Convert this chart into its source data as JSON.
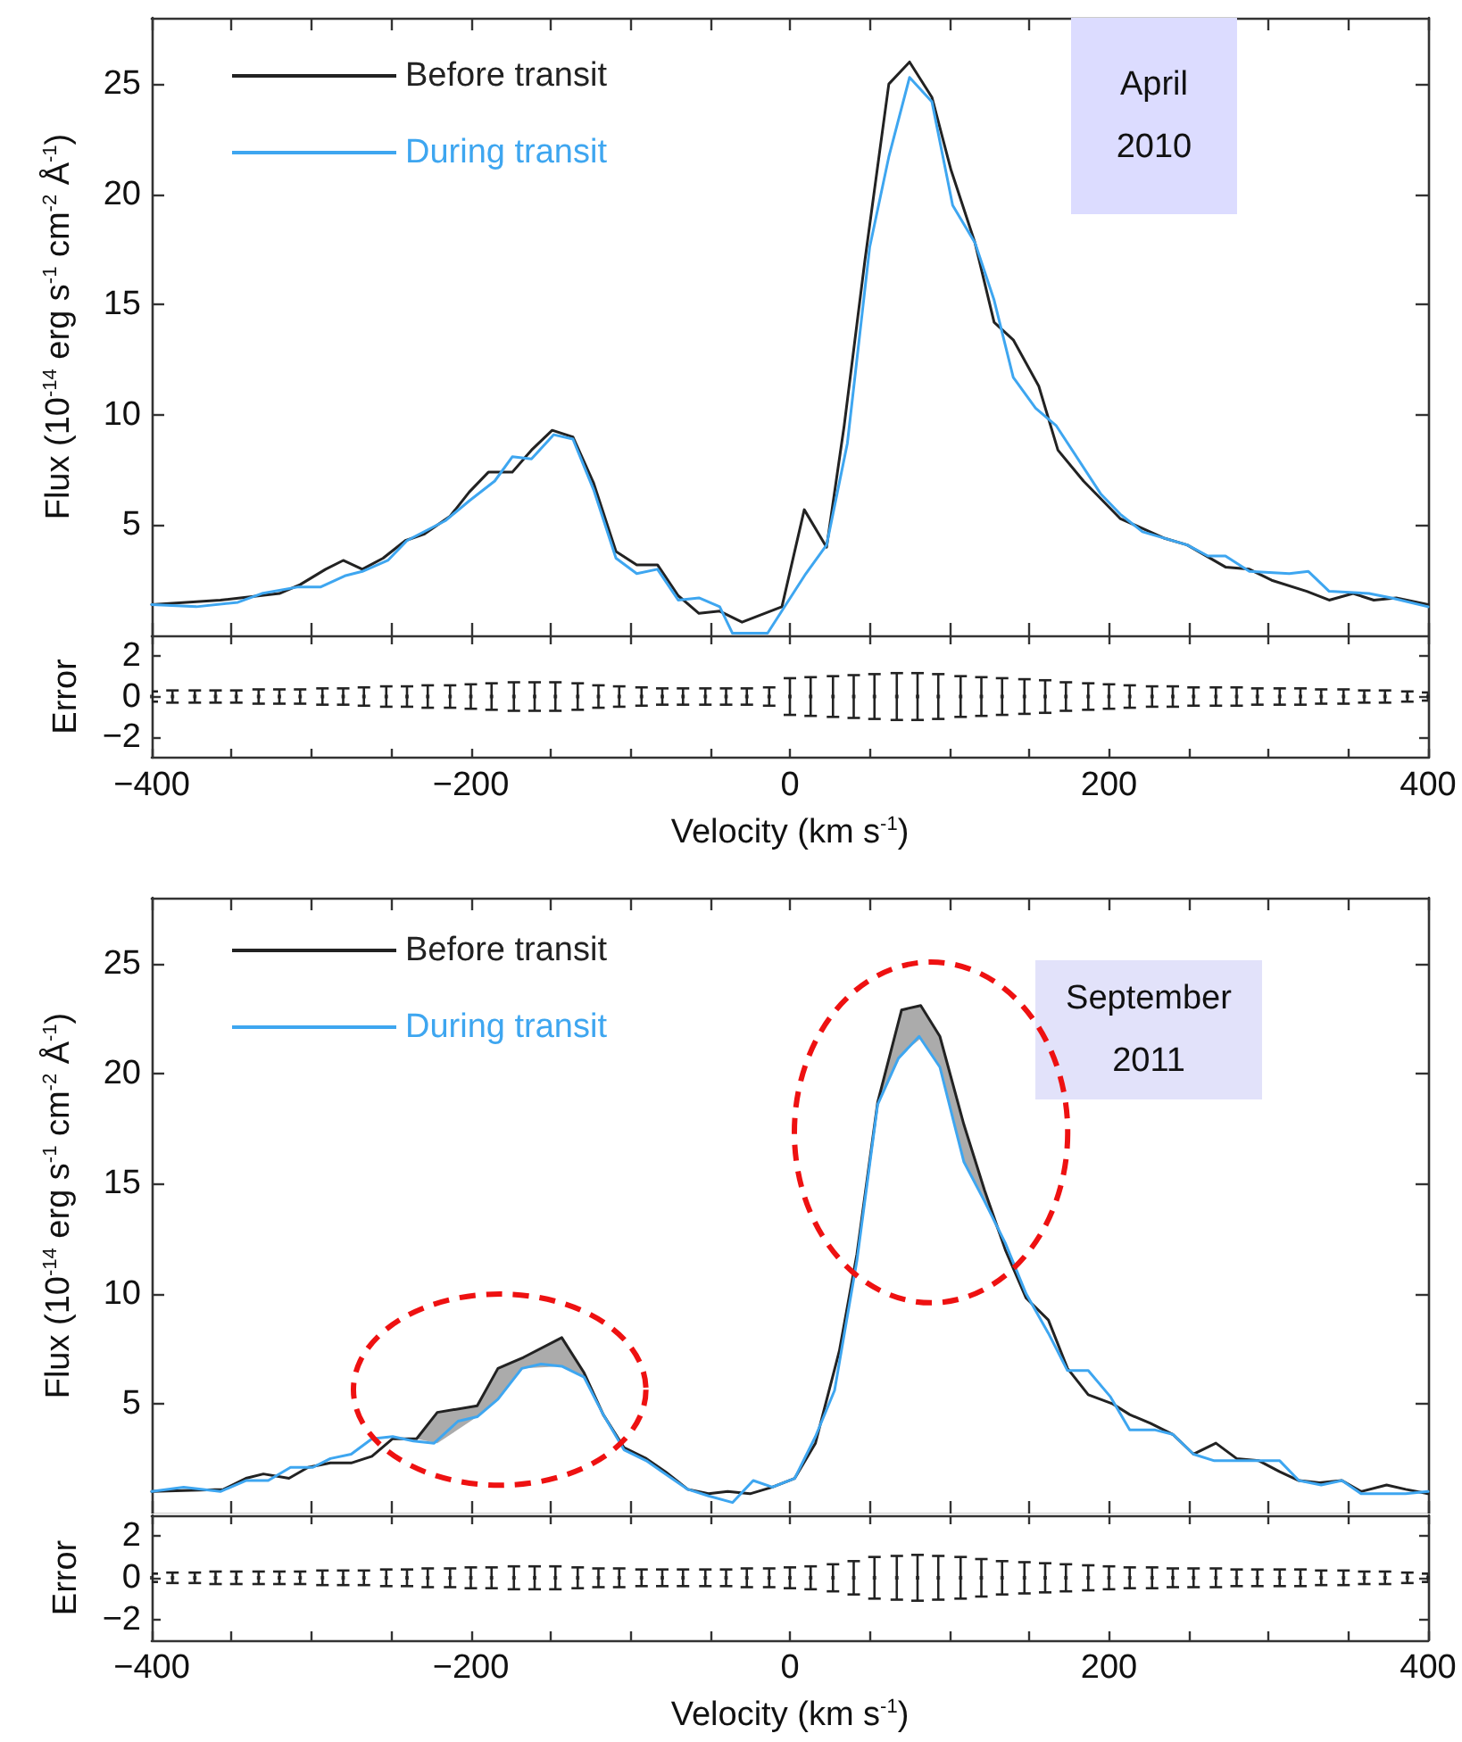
{
  "chart_data": [
    {
      "type": "line",
      "ylabel": "Flux (10$^{-14}$ erg s$^{-1}$ cm$^{-2}$ Å$^{-1}$)",
      "annotations": [
        "April 2010"
      ],
      "legend": "top left",
      "marker": "none",
      "grid": false,
      "tick_labels": "y",
      "xlim": [
        -400,
        400
      ],
      "xticks": [
        -400,
        -350,
        -300,
        -250,
        -200,
        -150,
        -100,
        -50,
        0,
        50,
        100,
        150,
        200,
        250,
        300,
        350,
        400
      ],
      "ylim": [
        0,
        28
      ],
      "yticks": [
        5,
        10,
        15,
        20,
        25
      ],
      "series": [
        {
          "name": "Before transit",
          "color": "#222222",
          "x": [
            -400,
            -357,
            -320,
            -307,
            -291,
            -280,
            -268,
            -255,
            -241,
            -229,
            -213,
            -201,
            -189,
            -174,
            -162,
            -149,
            -136,
            -123,
            -109,
            -96,
            -83,
            -70,
            -57,
            -44,
            -30,
            -5,
            9,
            23,
            34,
            47,
            62,
            75,
            89,
            101,
            116,
            128,
            140,
            156,
            168,
            184,
            207,
            235,
            249,
            273,
            288,
            302,
            324,
            338,
            353,
            366,
            380,
            400
          ],
          "values": [
            1.4,
            1.6,
            1.9,
            2.3,
            3.0,
            3.4,
            3.0,
            3.5,
            4.3,
            4.6,
            5.4,
            6.5,
            7.4,
            7.4,
            8.4,
            9.3,
            9.0,
            6.9,
            3.8,
            3.2,
            3.2,
            1.8,
            1.0,
            1.1,
            0.6,
            1.3,
            5.7,
            4.0,
            9.5,
            17.0,
            25.0,
            26.0,
            24.4,
            21.1,
            17.8,
            14.2,
            13.4,
            11.3,
            8.4,
            7.0,
            5.3,
            4.4,
            4.1,
            3.1,
            3.0,
            2.5,
            2.0,
            1.6,
            1.9,
            1.6,
            1.7,
            1.4
          ]
        },
        {
          "name": "During transit",
          "color": "#3ea6f0",
          "x": [
            -400,
            -372,
            -346,
            -331,
            -308,
            -294,
            -279,
            -268,
            -252,
            -240,
            -216,
            -201,
            -185,
            -174,
            -162,
            -148,
            -136,
            -123,
            -109,
            -96,
            -83,
            -70,
            -57,
            -44,
            -36,
            -14,
            10,
            23,
            36,
            50,
            62,
            75,
            89,
            102,
            116,
            128,
            140,
            154,
            167,
            195,
            207,
            221,
            249,
            262,
            273,
            288,
            313,
            325,
            338,
            363,
            377,
            400
          ],
          "values": [
            1.4,
            1.3,
            1.5,
            1.9,
            2.2,
            2.2,
            2.7,
            2.9,
            3.4,
            4.3,
            5.2,
            6.1,
            7.0,
            8.1,
            8.0,
            9.1,
            8.9,
            6.6,
            3.5,
            2.8,
            3.0,
            1.6,
            1.7,
            1.3,
            0.1,
            0.1,
            2.8,
            4.1,
            8.7,
            17.6,
            21.7,
            25.3,
            24.2,
            19.5,
            17.8,
            15.2,
            11.7,
            10.3,
            9.5,
            6.4,
            5.5,
            4.7,
            4.1,
            3.6,
            3.6,
            2.9,
            2.8,
            2.9,
            2.0,
            1.9,
            1.7,
            1.3
          ]
        }
      ]
    },
    {
      "type": "scatter",
      "xlabel": "Velocity (km s$^{-1}$)",
      "ylabel": "Error",
      "marker": "square",
      "grid": false,
      "color": "#222222",
      "xlim": [
        -400,
        400
      ],
      "xticks": [
        {
          "value": -400,
          "label": "−400"
        },
        {
          "value": -350,
          "label": null
        },
        {
          "value": -300,
          "label": null
        },
        {
          "value": -250,
          "label": null
        },
        {
          "value": -200,
          "label": "−200"
        },
        {
          "value": -150,
          "label": null
        },
        {
          "value": -100,
          "label": null
        },
        {
          "value": -50,
          "label": null
        },
        0,
        {
          "value": 50,
          "label": null
        },
        {
          "value": 100,
          "label": null
        },
        {
          "value": 150,
          "label": null
        },
        200,
        {
          "value": 250,
          "label": null
        },
        {
          "value": 300,
          "label": null
        },
        {
          "value": 350,
          "label": null
        },
        400
      ],
      "ylim": [
        -3,
        3
      ],
      "yticks": [
        {
          "value": -2,
          "label": "−2"
        },
        0,
        2
      ],
      "x": [
        -400,
        -387,
        -373,
        -360,
        -347,
        -333,
        -320,
        -307,
        -293,
        -280,
        -267,
        -253,
        -240,
        -227,
        -213,
        -200,
        -187,
        -173,
        -160,
        -147,
        -133,
        -120,
        -107,
        -93,
        -80,
        -67,
        -53,
        -40,
        -27,
        -13,
        0,
        13,
        27,
        40,
        53,
        67,
        80,
        93,
        107,
        120,
        133,
        147,
        160,
        173,
        187,
        200,
        213,
        227,
        240,
        253,
        267,
        280,
        293,
        307,
        320,
        333,
        347,
        360,
        373,
        387,
        400
      ],
      "values": [
        0,
        0,
        0,
        0,
        0,
        0,
        0,
        0,
        0,
        0,
        0,
        0,
        0,
        0,
        0,
        0,
        0,
        0,
        0,
        0,
        0,
        0,
        0,
        0,
        0,
        0,
        0,
        0,
        0,
        0,
        0,
        0,
        0,
        0,
        0,
        0,
        0,
        0,
        0,
        0,
        0,
        0,
        0,
        0,
        0,
        0,
        0,
        0,
        0,
        0,
        0,
        0,
        0,
        0,
        0,
        0,
        0,
        0,
        0,
        0,
        0
      ],
      "errors": [
        0.25,
        0.3,
        0.3,
        0.3,
        0.3,
        0.35,
        0.35,
        0.35,
        0.4,
        0.4,
        0.45,
        0.5,
        0.5,
        0.55,
        0.55,
        0.6,
        0.65,
        0.7,
        0.7,
        0.7,
        0.65,
        0.55,
        0.5,
        0.45,
        0.4,
        0.4,
        0.4,
        0.4,
        0.4,
        0.45,
        0.9,
        0.95,
        1.0,
        1.05,
        1.1,
        1.15,
        1.15,
        1.1,
        1.0,
        0.95,
        0.9,
        0.85,
        0.8,
        0.7,
        0.65,
        0.6,
        0.55,
        0.5,
        0.5,
        0.45,
        0.45,
        0.45,
        0.4,
        0.4,
        0.4,
        0.35,
        0.35,
        0.3,
        0.3,
        0.25,
        0.2
      ]
    },
    {
      "type": "line",
      "ylabel": "Flux (10$^{-14}$ erg s$^{-1}$ cm$^{-2}$ Å$^{-1}$)",
      "annotations": [
        "September 2011"
      ],
      "legend": "top left",
      "marker": "none",
      "grid": false,
      "tick_labels": "y",
      "xlim": [
        -400,
        400
      ],
      "xticks": [
        -400,
        -350,
        -300,
        -250,
        -200,
        -150,
        -100,
        -50,
        0,
        50,
        100,
        150,
        200,
        250,
        300,
        350,
        400
      ],
      "ylim": [
        0,
        28
      ],
      "yticks": [
        5,
        10,
        15,
        20,
        25
      ],
      "series": [
        {
          "name": "Before transit",
          "color": "#222222",
          "x": [
            -400,
            -355,
            -341,
            -330,
            -314,
            -302,
            -288,
            -275,
            -262,
            -249,
            -234,
            -221,
            -196,
            -183,
            -167,
            -143,
            -129,
            -117,
            -104,
            -90,
            -78,
            -64,
            -51,
            -39,
            -25,
            -11,
            3,
            16,
            31,
            42,
            55,
            70,
            82,
            94,
            109,
            122,
            135,
            148,
            162,
            174,
            187,
            202,
            213,
            226,
            240,
            253,
            267,
            280,
            294,
            307,
            319,
            332,
            346,
            358,
            374,
            386,
            400
          ],
          "values": [
            1.0,
            1.1,
            1.6,
            1.8,
            1.6,
            2.1,
            2.3,
            2.3,
            2.6,
            3.4,
            3.4,
            4.6,
            4.9,
            6.6,
            7.1,
            8.0,
            6.4,
            4.5,
            3.0,
            2.5,
            1.9,
            1.1,
            0.9,
            1.0,
            0.9,
            1.2,
            1.6,
            3.2,
            7.4,
            11.8,
            18.7,
            22.9,
            23.1,
            21.7,
            17.7,
            14.7,
            12.0,
            9.8,
            8.8,
            6.6,
            5.4,
            5.0,
            4.5,
            4.1,
            3.6,
            2.7,
            3.2,
            2.5,
            2.4,
            1.9,
            1.5,
            1.4,
            1.5,
            1.0,
            1.3,
            1.1,
            0.9
          ],
          "lower": [
            null,
            null,
            null,
            null,
            null,
            null,
            null,
            null,
            null,
            null,
            3.4,
            3.2,
            4.4,
            5.2,
            6.6,
            6.7,
            6.2,
            null,
            null,
            null,
            null,
            null,
            null,
            null,
            null,
            null,
            null,
            null,
            null,
            11.5,
            18.6,
            20.9,
            21.6,
            20.3,
            16.0,
            14.2,
            12.0,
            null,
            null,
            null,
            null,
            null,
            null,
            null,
            null,
            null,
            null,
            null,
            null,
            null,
            null,
            null,
            null,
            null,
            null,
            null,
            null
          ],
          "upper": [
            null,
            null,
            null,
            null,
            null,
            null,
            null,
            null,
            null,
            null,
            3.4,
            4.6,
            4.9,
            6.6,
            7.1,
            8.0,
            6.4,
            null,
            null,
            null,
            null,
            null,
            null,
            null,
            null,
            null,
            null,
            null,
            null,
            11.8,
            18.7,
            22.9,
            23.1,
            21.7,
            17.7,
            14.7,
            12.0,
            null,
            null,
            null,
            null,
            null,
            null,
            null,
            null,
            null,
            null,
            null,
            null,
            null,
            null,
            null,
            null,
            null,
            null,
            null,
            null
          ]
        },
        {
          "name": "During transit",
          "color": "#3ea6f0",
          "x": [
            -400,
            -380,
            -357,
            -341,
            -327,
            -313,
            -299,
            -288,
            -275,
            -262,
            -249,
            -236,
            -223,
            -208,
            -196,
            -183,
            -168,
            -156,
            -143,
            -129,
            -117,
            -104,
            -90,
            -78,
            -64,
            -51,
            -36,
            -23,
            -11,
            3,
            16,
            28,
            42,
            55,
            68,
            81,
            94,
            109,
            122,
            135,
            148,
            162,
            174,
            187,
            201,
            213,
            229,
            240,
            253,
            266,
            280,
            294,
            307,
            319,
            333,
            346,
            358,
            374,
            386,
            400
          ],
          "values": [
            1.0,
            1.2,
            1.0,
            1.5,
            1.5,
            2.1,
            2.1,
            2.5,
            2.7,
            3.4,
            3.5,
            3.3,
            3.2,
            4.2,
            4.4,
            5.2,
            6.6,
            6.8,
            6.7,
            6.2,
            4.5,
            2.9,
            2.4,
            1.8,
            1.1,
            0.8,
            0.5,
            1.5,
            1.2,
            1.6,
            3.5,
            5.6,
            11.5,
            18.6,
            20.7,
            21.7,
            20.3,
            16.0,
            14.2,
            12.3,
            10.0,
            8.2,
            6.5,
            6.5,
            5.3,
            3.8,
            3.8,
            3.6,
            2.7,
            2.4,
            2.4,
            2.4,
            2.4,
            1.5,
            1.3,
            1.5,
            0.9,
            0.9,
            0.9,
            1.0
          ]
        }
      ]
    },
    {
      "type": "scatter",
      "xlabel": "Velocity (km s$^{-1}$)",
      "ylabel": "Error",
      "marker": "square",
      "grid": false,
      "color": "#222222",
      "xlim": [
        -400,
        400
      ],
      "xticks": [
        {
          "value": -400,
          "label": "−400"
        },
        {
          "value": -350,
          "label": null
        },
        {
          "value": -300,
          "label": null
        },
        {
          "value": -250,
          "label": null
        },
        {
          "value": -200,
          "label": "−200"
        },
        {
          "value": -150,
          "label": null
        },
        {
          "value": -100,
          "label": null
        },
        {
          "value": -50,
          "label": null
        },
        0,
        {
          "value": 50,
          "label": null
        },
        {
          "value": 100,
          "label": null
        },
        {
          "value": 150,
          "label": null
        },
        200,
        {
          "value": 250,
          "label": null
        },
        {
          "value": 300,
          "label": null
        },
        {
          "value": 350,
          "label": null
        },
        400
      ],
      "ylim": [
        -3,
        3
      ],
      "yticks": [
        {
          "value": -2,
          "label": "−2"
        },
        0,
        2
      ],
      "x": [
        -400,
        -387,
        -373,
        -360,
        -347,
        -333,
        -320,
        -307,
        -293,
        -280,
        -267,
        -253,
        -240,
        -227,
        -213,
        -200,
        -187,
        -173,
        -160,
        -147,
        -133,
        -120,
        -107,
        -93,
        -80,
        -67,
        -53,
        -40,
        -27,
        -13,
        0,
        13,
        27,
        40,
        53,
        67,
        80,
        93,
        107,
        120,
        133,
        147,
        160,
        173,
        187,
        200,
        213,
        227,
        240,
        253,
        267,
        280,
        293,
        307,
        320,
        333,
        347,
        360,
        373,
        387,
        400
      ],
      "values": [
        0,
        0,
        0,
        0,
        0,
        0,
        0,
        0,
        0,
        0,
        0,
        0,
        0,
        0,
        0,
        0,
        0,
        0,
        0,
        0,
        0,
        0,
        0,
        0,
        0,
        0,
        0,
        0,
        0,
        0,
        0,
        0,
        0,
        0,
        0,
        0,
        0,
        0,
        0,
        0,
        0,
        0,
        0,
        0,
        0,
        0,
        0,
        0,
        0,
        0,
        0,
        0,
        0,
        0,
        0,
        0,
        0,
        0,
        0,
        0,
        0
      ],
      "errors": [
        0.2,
        0.25,
        0.25,
        0.3,
        0.3,
        0.3,
        0.3,
        0.3,
        0.35,
        0.35,
        0.35,
        0.4,
        0.4,
        0.45,
        0.45,
        0.5,
        0.5,
        0.55,
        0.55,
        0.55,
        0.5,
        0.45,
        0.45,
        0.4,
        0.4,
        0.4,
        0.4,
        0.4,
        0.45,
        0.45,
        0.5,
        0.55,
        0.65,
        0.8,
        1.0,
        1.05,
        1.1,
        1.05,
        1.0,
        0.9,
        0.8,
        0.75,
        0.7,
        0.65,
        0.6,
        0.55,
        0.5,
        0.5,
        0.45,
        0.45,
        0.45,
        0.4,
        0.4,
        0.4,
        0.4,
        0.35,
        0.35,
        0.3,
        0.3,
        0.25,
        0.2
      ]
    }
  ]
}
